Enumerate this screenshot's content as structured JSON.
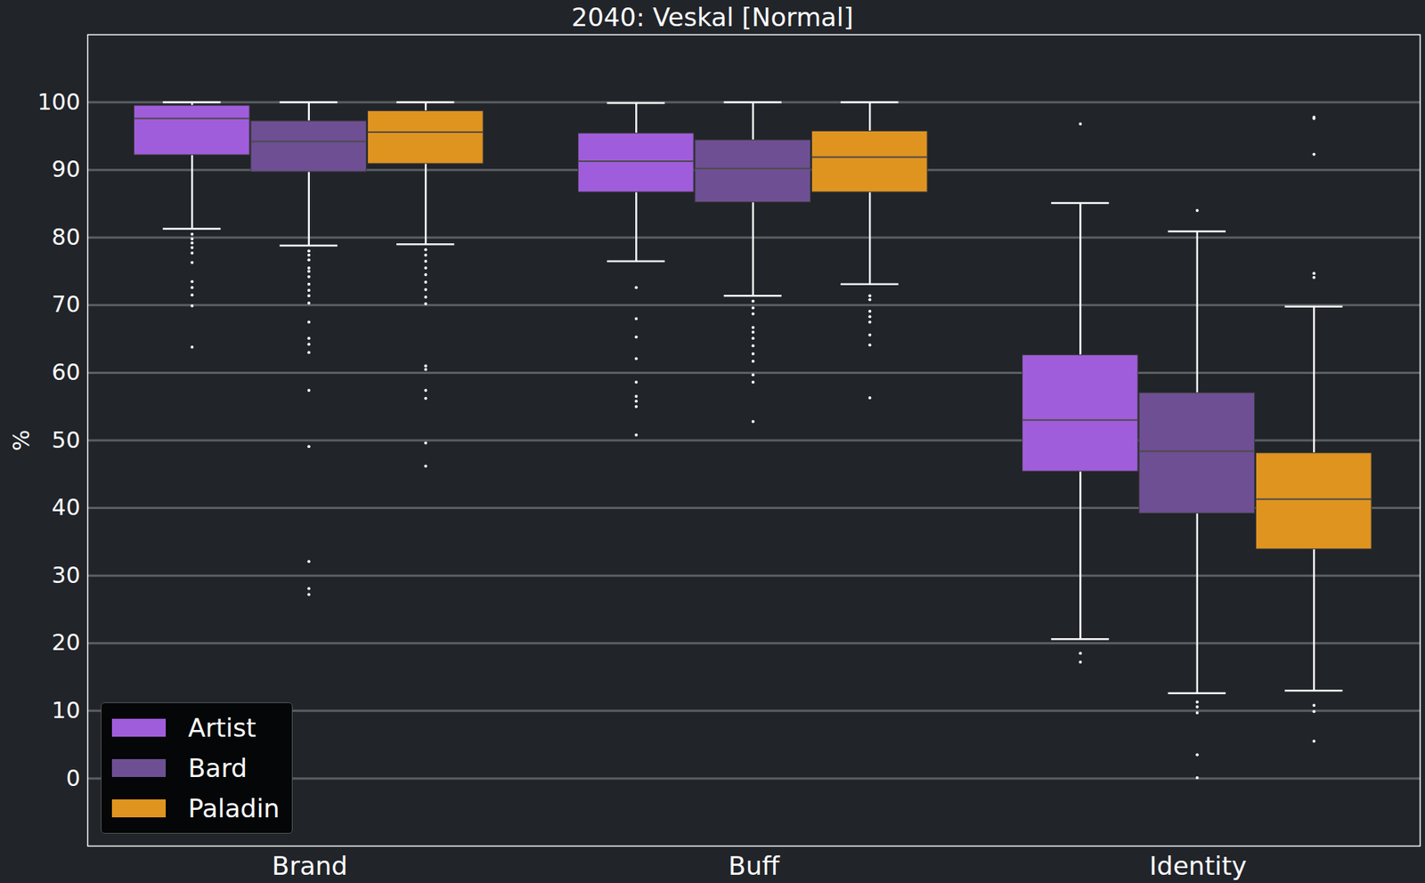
{
  "chart_data": {
    "type": "box",
    "title": "2040: Veskal [Normal]",
    "ylabel": "%",
    "categories": [
      "Brand",
      "Buff",
      "Identity"
    ],
    "ylim": [
      -10,
      110
    ],
    "yticks": [
      0,
      10,
      20,
      30,
      40,
      50,
      60,
      70,
      80,
      90,
      100
    ],
    "grid": true,
    "legend": "lower left",
    "series": [
      {
        "name": "Artist",
        "color": "#a05ddb",
        "boxes": [
          {
            "whisker_low": 81.3,
            "q1": 92.2,
            "median": 97.6,
            "q3": 99.5,
            "whisker_high": 100,
            "outliers": [
              80.5,
              79.8,
              79.2,
              78.5,
              77.7,
              76.3,
              73.5,
              72.6,
              71.5,
              69.9,
              63.8
            ]
          },
          {
            "whisker_low": 76.5,
            "q1": 86.7,
            "median": 91.3,
            "q3": 95.4,
            "whisker_high": 99.9,
            "outliers": [
              72.6,
              68.0,
              65.3,
              62.1,
              58.6,
              56.5,
              55.8,
              55.0,
              50.8
            ]
          },
          {
            "whisker_low": 20.6,
            "q1": 45.4,
            "median": 53.0,
            "q3": 62.6,
            "whisker_high": 85.1,
            "outliers": [
              96.8,
              18.5,
              17.2
            ]
          }
        ]
      },
      {
        "name": "Bard",
        "color": "#6e4f93",
        "boxes": [
          {
            "whisker_low": 78.8,
            "q1": 89.7,
            "median": 94.2,
            "q3": 97.2,
            "whisker_high": 100,
            "outliers": [
              78.0,
              77.4,
              76.7,
              75.5,
              75.0,
              74.2,
              73.1,
              72.2,
              71.4,
              70.3,
              67.5,
              65.1,
              64.2,
              63.0,
              57.4,
              49.1,
              32.1,
              28.1,
              27.2
            ]
          },
          {
            "whisker_low": 71.4,
            "q1": 85.2,
            "median": 90.2,
            "q3": 94.4,
            "whisker_high": 100,
            "outliers": [
              70.6,
              69.6,
              68.7,
              66.7,
              66.0,
              65.1,
              64.0,
              62.8,
              61.7,
              59.7,
              58.6,
              52.8
            ]
          },
          {
            "whisker_low": 12.6,
            "q1": 39.2,
            "median": 48.4,
            "q3": 57.0,
            "whisker_high": 80.9,
            "outliers": [
              84.0,
              11.3,
              10.6,
              9.7,
              3.5,
              0.1
            ]
          }
        ]
      },
      {
        "name": "Paladin",
        "color": "#e09420",
        "boxes": [
          {
            "whisker_low": 79.0,
            "q1": 90.9,
            "median": 95.6,
            "q3": 98.7,
            "whisker_high": 100,
            "outliers": [
              78.2,
              77.4,
              76.5,
              75.5,
              74.5,
              73.4,
              72.3,
              71.2,
              70.2,
              61.0,
              60.5,
              57.4,
              56.2,
              49.6,
              46.2
            ]
          },
          {
            "whisker_low": 73.1,
            "q1": 86.7,
            "median": 91.9,
            "q3": 95.7,
            "whisker_high": 100,
            "outliers": [
              71.4,
              70.8,
              69.1,
              68.3,
              67.5,
              65.6,
              64.1,
              56.3
            ]
          },
          {
            "whisker_low": 13.0,
            "q1": 33.9,
            "median": 41.3,
            "q3": 48.1,
            "whisker_high": 69.8,
            "outliers": [
              97.8,
              97.6,
              92.3,
              74.7,
              74.1,
              10.8,
              9.9,
              5.5
            ]
          }
        ]
      }
    ]
  }
}
